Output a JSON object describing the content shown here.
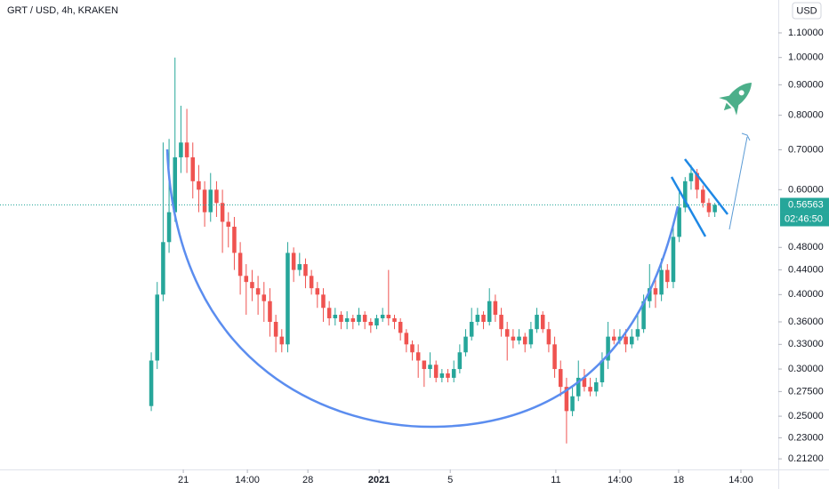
{
  "chart_data": {
    "type": "candlestick",
    "title": "GRT / USD, 4h, KRAKEN",
    "currency": "USD",
    "countdown": "02:46:50",
    "log_scale": true,
    "up_color": "#26a69a",
    "down_color": "#ef5350",
    "open": [
      0.26,
      0.31,
      0.4,
      0.49,
      0.55,
      0.68,
      0.72,
      0.68,
      0.62,
      0.6,
      0.55,
      0.6,
      0.57,
      0.53,
      0.52,
      0.47,
      0.43,
      0.42,
      0.41,
      0.4,
      0.39,
      0.36,
      0.34,
      0.33,
      0.47,
      0.44,
      0.45,
      0.43,
      0.41,
      0.4,
      0.38,
      0.365,
      0.37,
      0.36,
      0.365,
      0.36,
      0.37,
      0.36,
      0.355,
      0.365,
      0.37,
      0.365,
      0.36,
      0.345,
      0.33,
      0.32,
      0.31,
      0.3,
      0.305,
      0.29,
      0.295,
      0.29,
      0.3,
      0.32,
      0.34,
      0.36,
      0.37,
      0.36,
      0.39,
      0.37,
      0.35,
      0.34,
      0.335,
      0.34,
      0.33,
      0.35,
      0.37,
      0.35,
      0.33,
      0.3,
      0.28,
      0.255,
      0.27,
      0.29,
      0.28,
      0.275,
      0.285,
      0.31,
      0.34,
      0.335,
      0.34,
      0.33,
      0.34,
      0.35,
      0.39,
      0.41,
      0.4,
      0.44,
      0.42,
      0.5,
      0.56,
      0.62,
      0.64,
      0.6,
      0.57,
      0.55
    ],
    "high": [
      0.32,
      0.42,
      0.72,
      0.73,
      1.0,
      0.83,
      0.82,
      0.72,
      0.66,
      0.62,
      0.64,
      0.62,
      0.6,
      0.55,
      0.54,
      0.49,
      0.45,
      0.44,
      0.43,
      0.42,
      0.41,
      0.37,
      0.35,
      0.49,
      0.48,
      0.47,
      0.46,
      0.44,
      0.42,
      0.41,
      0.39,
      0.38,
      0.375,
      0.375,
      0.37,
      0.38,
      0.375,
      0.365,
      0.37,
      0.38,
      0.44,
      0.37,
      0.365,
      0.35,
      0.335,
      0.33,
      0.31,
      0.32,
      0.31,
      0.3,
      0.3,
      0.31,
      0.33,
      0.35,
      0.38,
      0.38,
      0.375,
      0.41,
      0.4,
      0.38,
      0.36,
      0.35,
      0.35,
      0.345,
      0.36,
      0.38,
      0.375,
      0.36,
      0.34,
      0.31,
      0.29,
      0.28,
      0.31,
      0.3,
      0.29,
      0.29,
      0.32,
      0.36,
      0.35,
      0.35,
      0.35,
      0.35,
      0.37,
      0.4,
      0.45,
      0.43,
      0.46,
      0.45,
      0.52,
      0.6,
      0.63,
      0.66,
      0.65,
      0.61,
      0.58,
      0.57
    ],
    "low": [
      0.255,
      0.3,
      0.39,
      0.47,
      0.53,
      0.64,
      0.64,
      0.58,
      0.55,
      0.52,
      0.53,
      0.54,
      0.47,
      0.48,
      0.44,
      0.4,
      0.37,
      0.39,
      0.37,
      0.36,
      0.34,
      0.32,
      0.32,
      0.32,
      0.42,
      0.43,
      0.41,
      0.4,
      0.38,
      0.36,
      0.355,
      0.355,
      0.35,
      0.35,
      0.35,
      0.355,
      0.35,
      0.345,
      0.35,
      0.36,
      0.355,
      0.35,
      0.335,
      0.32,
      0.31,
      0.29,
      0.28,
      0.29,
      0.285,
      0.285,
      0.285,
      0.285,
      0.295,
      0.315,
      0.335,
      0.355,
      0.35,
      0.355,
      0.36,
      0.34,
      0.31,
      0.325,
      0.33,
      0.32,
      0.325,
      0.345,
      0.345,
      0.32,
      0.29,
      0.27,
      0.225,
      0.25,
      0.265,
      0.275,
      0.27,
      0.27,
      0.28,
      0.3,
      0.33,
      0.33,
      0.32,
      0.325,
      0.335,
      0.345,
      0.38,
      0.38,
      0.39,
      0.41,
      0.41,
      0.49,
      0.55,
      0.6,
      0.58,
      0.56,
      0.54,
      0.54
    ],
    "close": [
      0.31,
      0.4,
      0.49,
      0.55,
      0.68,
      0.72,
      0.68,
      0.62,
      0.6,
      0.55,
      0.6,
      0.57,
      0.53,
      0.52,
      0.47,
      0.43,
      0.42,
      0.41,
      0.4,
      0.39,
      0.36,
      0.34,
      0.33,
      0.47,
      0.44,
      0.45,
      0.43,
      0.41,
      0.4,
      0.38,
      0.365,
      0.37,
      0.36,
      0.365,
      0.36,
      0.37,
      0.36,
      0.355,
      0.365,
      0.37,
      0.365,
      0.36,
      0.345,
      0.33,
      0.32,
      0.31,
      0.3,
      0.305,
      0.29,
      0.295,
      0.29,
      0.3,
      0.32,
      0.34,
      0.36,
      0.37,
      0.36,
      0.39,
      0.37,
      0.35,
      0.34,
      0.335,
      0.34,
      0.33,
      0.35,
      0.37,
      0.35,
      0.33,
      0.3,
      0.28,
      0.255,
      0.27,
      0.29,
      0.28,
      0.275,
      0.285,
      0.31,
      0.34,
      0.335,
      0.34,
      0.33,
      0.34,
      0.35,
      0.39,
      0.41,
      0.4,
      0.44,
      0.42,
      0.5,
      0.56,
      0.62,
      0.64,
      0.6,
      0.57,
      0.55,
      0.56563
    ],
    "xlim": [
      -25.5,
      105.7
    ],
    "xticks": [
      {
        "value": 5.4,
        "label": "21"
      },
      {
        "value": 16.2,
        "label": "14:00"
      },
      {
        "value": 26.4,
        "label": "28"
      },
      {
        "value": 38.4,
        "label": "2021",
        "bold": true
      },
      {
        "value": 50.4,
        "label": "5"
      },
      {
        "value": 68.2,
        "label": "11"
      },
      {
        "value": 79.0,
        "label": "14:00"
      },
      {
        "value": 88.9,
        "label": "18"
      },
      {
        "value": 99.4,
        "label": "14:00"
      }
    ],
    "ylim": [
      0.2035,
      1.249
    ],
    "yticks": [
      {
        "value": 1.1,
        "label": "1.10000"
      },
      {
        "value": 1.0,
        "label": "1.00000"
      },
      {
        "value": 0.9,
        "label": "0.90000"
      },
      {
        "value": 0.8,
        "label": "0.80000"
      },
      {
        "value": 0.7,
        "label": "0.70000"
      },
      {
        "value": 0.6,
        "label": "0.60000"
      },
      {
        "value": 0.48,
        "label": "0.48000"
      },
      {
        "value": 0.44,
        "label": "0.44000"
      },
      {
        "value": 0.4,
        "label": "0.40000"
      },
      {
        "value": 0.36,
        "label": "0.36000"
      },
      {
        "value": 0.33,
        "label": "0.33000"
      },
      {
        "value": 0.3,
        "label": "0.30000"
      },
      {
        "value": 0.275,
        "label": "0.27500"
      },
      {
        "value": 0.25,
        "label": "0.25000"
      },
      {
        "value": 0.23,
        "label": "0.23000"
      },
      {
        "value": 0.212,
        "label": "0.21200"
      }
    ]
  }
}
